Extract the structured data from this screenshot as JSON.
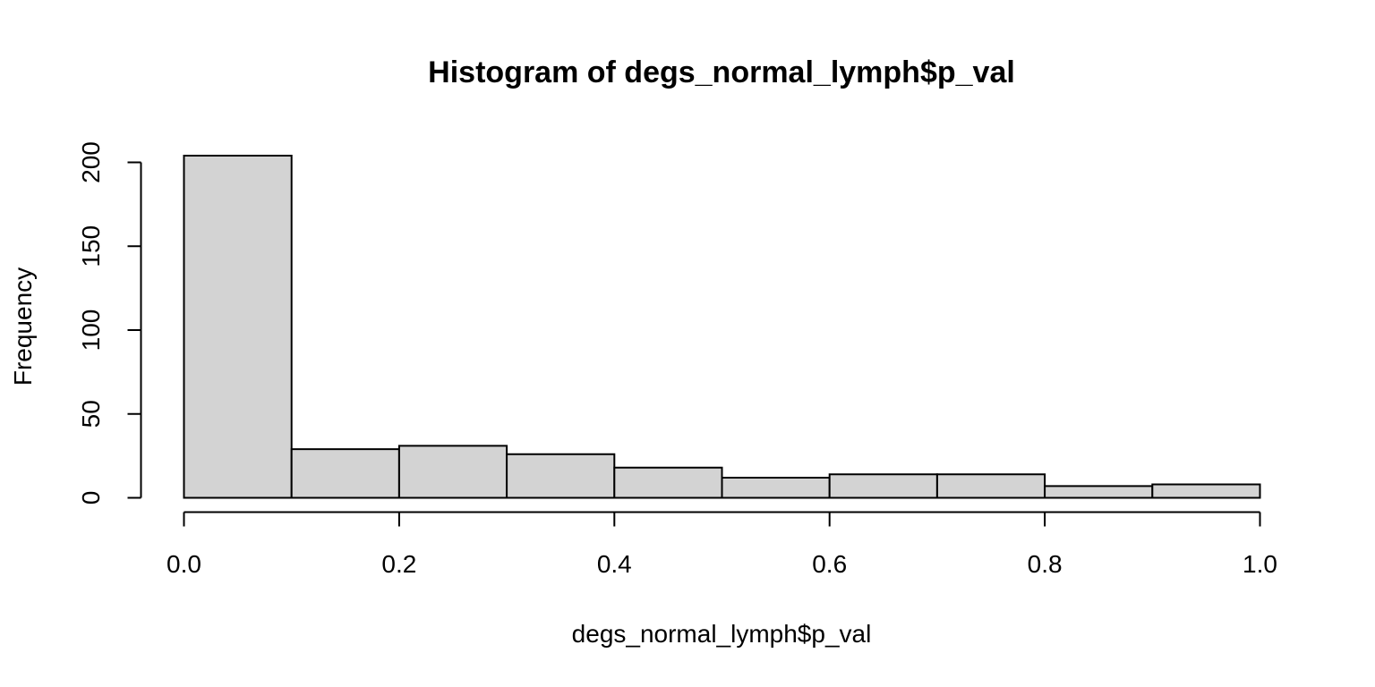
{
  "chart_data": {
    "type": "bar",
    "title": "Histogram of degs_normal_lymph$p_val",
    "xlabel": "degs_normal_lymph$p_val",
    "ylabel": "Frequency",
    "bins": [
      {
        "x0": 0.0,
        "x1": 0.1,
        "count": 204
      },
      {
        "x0": 0.1,
        "x1": 0.2,
        "count": 29
      },
      {
        "x0": 0.2,
        "x1": 0.3,
        "count": 31
      },
      {
        "x0": 0.3,
        "x1": 0.4,
        "count": 26
      },
      {
        "x0": 0.4,
        "x1": 0.5,
        "count": 18
      },
      {
        "x0": 0.5,
        "x1": 0.6,
        "count": 12
      },
      {
        "x0": 0.6,
        "x1": 0.7,
        "count": 14
      },
      {
        "x0": 0.7,
        "x1": 0.8,
        "count": 14
      },
      {
        "x0": 0.8,
        "x1": 0.9,
        "count": 7
      },
      {
        "x0": 0.9,
        "x1": 1.0,
        "count": 8
      }
    ],
    "xlim": [
      0.0,
      1.0
    ],
    "ylim": [
      0,
      204
    ],
    "xticks": [
      "0.0",
      "0.2",
      "0.4",
      "0.6",
      "0.8",
      "1.0"
    ],
    "yticks": [
      "0",
      "50",
      "100",
      "150",
      "200"
    ],
    "grid": false,
    "colors": {
      "bar_fill": "#d3d3d3",
      "bar_stroke": "#000000"
    }
  }
}
